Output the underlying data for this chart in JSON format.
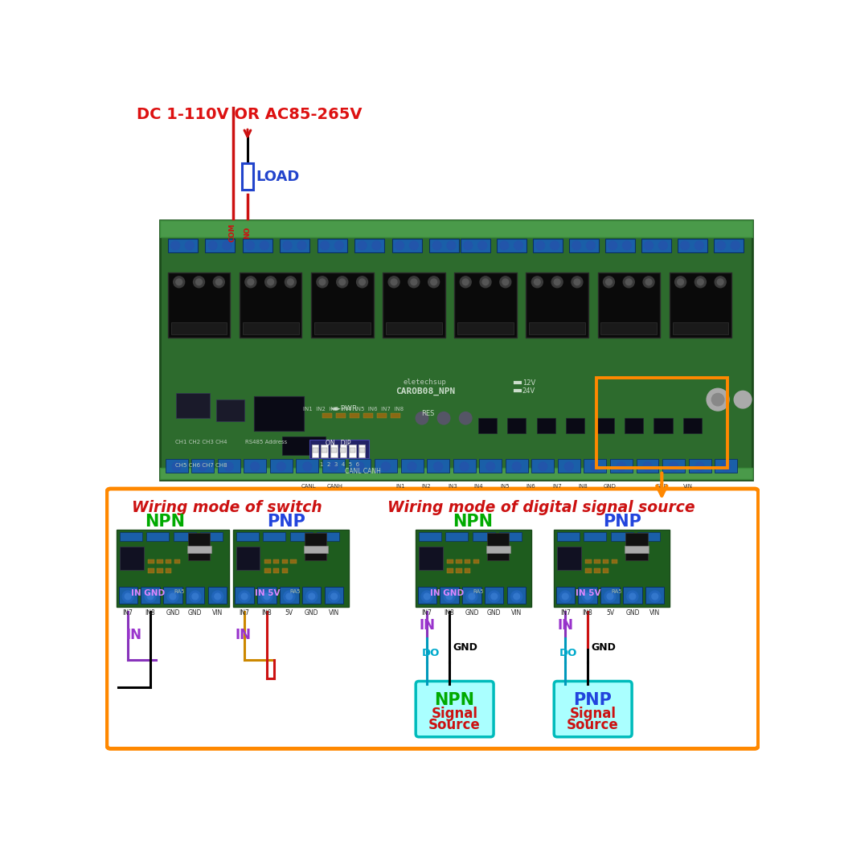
{
  "bg_color": "#ffffff",
  "title_text": "DC 1-110V OR AC85-265V",
  "title_color": "#dd1111",
  "load_text": "LOAD",
  "load_color": "#2244cc",
  "switch_title": "Wiring mode of switch",
  "digital_title": "Wiring mode of digital signal source",
  "title_color2": "#cc1111",
  "npn_color": "#00aa00",
  "pnp_color": "#2244dd",
  "box_border_color": "#ff8800",
  "cyan_box_border": "#00bbbb",
  "cyan_box_bg": "#aaffff",
  "in_label_color": "#9933cc",
  "do_label_color": "#00aacc",
  "red_line_color": "#cc1111",
  "board_green": "#2d6b2d",
  "board_dark_green": "#1e4d1e",
  "terminal_blue": "#1a5fa8",
  "relay_black": "#111111",
  "pcb_light_green": "#3a7a3a"
}
